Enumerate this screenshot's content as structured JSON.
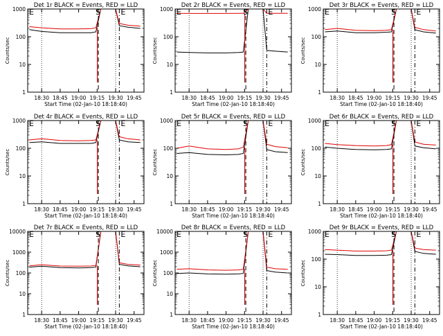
{
  "figure": {
    "start_time_label": "Start Time (02-Jan-10 18:18:40)",
    "ylabel": "Counts/sec",
    "marker_labels": {
      "start": "S",
      "end": "E"
    },
    "colors": {
      "events": "#000000",
      "lld": "#e00000",
      "axis": "#000000"
    },
    "x_ticks": [
      "18:30",
      "18:45",
      "19:00",
      "19:15",
      "19:30",
      "19:45"
    ],
    "legend_text": "BLACK = Events, RED = LLD"
  },
  "chart_data": [
    {
      "type": "line",
      "title": "Det 1r BLACK = Events, RED = LLD",
      "xlabel": "Start Time (02-Jan-10 18:18:40)",
      "ylabel": "Counts/sec",
      "yscale": "log",
      "ylim": [
        1,
        1000
      ],
      "y_ticks": [
        "1",
        "10",
        "100",
        "1000"
      ],
      "x_ticks": [
        "18:30",
        "18:45",
        "19:00",
        "19:15",
        "19:30",
        "19:45"
      ],
      "markers": {
        "E_left_at": "18:18",
        "S_at": "19:16",
        "E_right_at": "19:33"
      },
      "series": [
        {
          "name": "Events",
          "color": "#000000",
          "x": [
            "18:20",
            "18:30",
            "18:45",
            "19:00",
            "19:10",
            "19:14",
            "19:18",
            "19:30",
            "19:33",
            "19:40",
            "19:50"
          ],
          "y": [
            180,
            155,
            140,
            140,
            140,
            150,
            1000,
            1000,
            250,
            220,
            200
          ]
        },
        {
          "name": "LLD",
          "color": "#e00000",
          "x": [
            "18:20",
            "18:30",
            "18:45",
            "19:00",
            "19:10",
            "19:14",
            "19:18",
            "19:30",
            "19:33",
            "19:40",
            "19:50"
          ],
          "y": [
            230,
            210,
            190,
            190,
            195,
            210,
            1000,
            1000,
            300,
            260,
            240
          ]
        }
      ]
    },
    {
      "type": "line",
      "title": "Det 2r BLACK = Events, RED = LLD",
      "xlabel": "Start Time (02-Jan-10 18:18:40)",
      "ylabel": "Counts/sec",
      "yscale": "log",
      "ylim": [
        1,
        1000
      ],
      "y_ticks": [
        "1",
        "10",
        "100",
        "1000"
      ],
      "x_ticks": [
        "18:30",
        "18:45",
        "19:00",
        "19:15",
        "19:30",
        "19:45"
      ],
      "markers": {
        "E_left_at": "18:18",
        "S_at": "19:16",
        "E_right_at": "19:33"
      },
      "series": [
        {
          "name": "Events",
          "color": "#000000",
          "x": [
            "18:20",
            "18:30",
            "18:45",
            "19:00",
            "19:10",
            "19:14",
            "19:18",
            "19:30",
            "19:33",
            "19:40",
            "19:50"
          ],
          "y": [
            28,
            27,
            26,
            26,
            27,
            28,
            1000,
            1000,
            32,
            30,
            28
          ]
        },
        {
          "name": "LLD",
          "color": "#e00000",
          "x": [
            "18:20",
            "18:30",
            "18:45",
            "19:00",
            "19:10",
            "19:14",
            "19:18",
            "19:30",
            "19:33",
            "19:40",
            "19:50"
          ],
          "y": [
            700,
            690,
            690,
            690,
            695,
            700,
            1000,
            1000,
            700,
            700,
            700
          ]
        }
      ]
    },
    {
      "type": "line",
      "title": "Det 3r BLACK = Events, RED = LLD",
      "xlabel": "Start Time (02-Jan-10 18:18:40)",
      "ylabel": "Counts/sec",
      "yscale": "log",
      "ylim": [
        1,
        1000
      ],
      "y_ticks": [
        "1",
        "10",
        "100",
        "1000"
      ],
      "x_ticks": [
        "18:30",
        "18:45",
        "19:00",
        "19:15",
        "19:30",
        "19:45"
      ],
      "markers": {
        "E_left_at": "18:18",
        "S_at": "19:16",
        "E_right_at": "19:33"
      },
      "series": [
        {
          "name": "Events",
          "color": "#000000",
          "x": [
            "18:20",
            "18:30",
            "18:45",
            "19:00",
            "19:10",
            "19:14",
            "19:18",
            "19:30",
            "19:33",
            "19:40",
            "19:50"
          ],
          "y": [
            150,
            160,
            140,
            140,
            145,
            150,
            1000,
            1000,
            180,
            150,
            135
          ]
        },
        {
          "name": "LLD",
          "color": "#e00000",
          "x": [
            "18:20",
            "18:30",
            "18:45",
            "19:00",
            "19:10",
            "19:14",
            "19:18",
            "19:30",
            "19:33",
            "19:40",
            "19:50"
          ],
          "y": [
            180,
            200,
            170,
            165,
            170,
            180,
            1000,
            1000,
            220,
            180,
            160
          ]
        }
      ]
    },
    {
      "type": "line",
      "title": "Det 4r BLACK = Events, RED = LLD",
      "xlabel": "Start Time (02-Jan-10 18:18:40)",
      "ylabel": "Counts/sec",
      "yscale": "log",
      "ylim": [
        1,
        1000
      ],
      "y_ticks": [
        "1",
        "10",
        "100",
        "1000"
      ],
      "x_ticks": [
        "18:30",
        "18:45",
        "19:00",
        "19:15",
        "19:30",
        "19:45"
      ],
      "markers": {
        "E_left_at": "18:18",
        "S_at": "19:16",
        "E_right_at": "19:33"
      },
      "series": [
        {
          "name": "Events",
          "color": "#000000",
          "x": [
            "18:20",
            "18:30",
            "18:45",
            "19:00",
            "19:10",
            "19:14",
            "19:18",
            "19:30",
            "19:33",
            "19:40",
            "19:50"
          ],
          "y": [
            160,
            170,
            150,
            150,
            150,
            160,
            1000,
            1000,
            200,
            170,
            160
          ]
        },
        {
          "name": "LLD",
          "color": "#e00000",
          "x": [
            "18:20",
            "18:30",
            "18:45",
            "19:00",
            "19:10",
            "19:14",
            "19:18",
            "19:30",
            "19:33",
            "19:40",
            "19:50"
          ],
          "y": [
            200,
            220,
            190,
            185,
            190,
            200,
            1000,
            1000,
            260,
            220,
            200
          ]
        }
      ]
    },
    {
      "type": "line",
      "title": "Det 5r BLACK = Events, RED = LLD",
      "xlabel": "Start Time (02-Jan-10 18:18:40)",
      "ylabel": "Counts/sec",
      "yscale": "log",
      "ylim": [
        1,
        1000
      ],
      "y_ticks": [
        "1",
        "10",
        "100",
        "1000"
      ],
      "x_ticks": [
        "18:30",
        "18:45",
        "19:00",
        "19:15",
        "19:30",
        "19:45"
      ],
      "markers": {
        "E_left_at": "18:18",
        "S_at": "19:16",
        "E_right_at": "19:33"
      },
      "series": [
        {
          "name": "Events",
          "color": "#000000",
          "x": [
            "18:20",
            "18:30",
            "18:45",
            "19:00",
            "19:10",
            "19:14",
            "19:18",
            "19:30",
            "19:33",
            "19:40",
            "19:50"
          ],
          "y": [
            65,
            70,
            60,
            58,
            60,
            65,
            1000,
            1000,
            90,
            75,
            70
          ]
        },
        {
          "name": "LLD",
          "color": "#e00000",
          "x": [
            "18:20",
            "18:30",
            "18:45",
            "19:00",
            "19:10",
            "19:14",
            "19:18",
            "19:30",
            "19:33",
            "19:40",
            "19:50"
          ],
          "y": [
            100,
            120,
            95,
            90,
            95,
            110,
            1000,
            1000,
            140,
            115,
            105
          ]
        }
      ]
    },
    {
      "type": "line",
      "title": "Det 6r BLACK = Events, RED = LLD",
      "xlabel": "Start Time (02-Jan-10 18:18:40)",
      "ylabel": "Counts/sec",
      "yscale": "log",
      "ylim": [
        1,
        1000
      ],
      "y_ticks": [
        "1",
        "10",
        "100",
        "1000"
      ],
      "x_ticks": [
        "18:30",
        "18:45",
        "19:00",
        "19:15",
        "19:30",
        "19:45"
      ],
      "markers": {
        "E_left_at": "18:18",
        "S_at": "19:16",
        "E_right_at": "19:33"
      },
      "series": [
        {
          "name": "Events",
          "color": "#000000",
          "x": [
            "18:20",
            "18:30",
            "18:45",
            "19:00",
            "19:10",
            "19:14",
            "19:18",
            "19:30",
            "19:33",
            "19:40",
            "19:50"
          ],
          "y": [
            110,
            100,
            90,
            88,
            90,
            95,
            1000,
            1000,
            120,
            105,
            95
          ]
        },
        {
          "name": "LLD",
          "color": "#e00000",
          "x": [
            "18:20",
            "18:30",
            "18:45",
            "19:00",
            "19:10",
            "19:14",
            "19:18",
            "19:30",
            "19:33",
            "19:40",
            "19:50"
          ],
          "y": [
            150,
            135,
            125,
            120,
            125,
            135,
            1000,
            1000,
            170,
            140,
            130
          ]
        }
      ]
    },
    {
      "type": "line",
      "title": "Det 7r BLACK = Events, RED = LLD",
      "xlabel": "Start Time (02-Jan-10 18:18:40)",
      "ylabel": "Counts/sec",
      "yscale": "log",
      "ylim": [
        1,
        10000
      ],
      "y_ticks": [
        "1",
        "10",
        "100",
        "1000",
        "10000"
      ],
      "x_ticks": [
        "18:30",
        "18:45",
        "19:00",
        "19:15",
        "19:30",
        "19:45"
      ],
      "markers": {
        "E_left_at": "18:18",
        "S_at": "19:16",
        "E_right_at": "19:33"
      },
      "series": [
        {
          "name": "Events",
          "color": "#000000",
          "x": [
            "18:20",
            "18:30",
            "18:45",
            "19:00",
            "19:10",
            "19:14",
            "19:18",
            "19:30",
            "19:33",
            "19:40",
            "19:50"
          ],
          "y": [
            190,
            210,
            180,
            175,
            180,
            190,
            10000,
            10000,
            260,
            220,
            200
          ]
        },
        {
          "name": "LLD",
          "color": "#e00000",
          "x": [
            "18:20",
            "18:30",
            "18:45",
            "19:00",
            "19:10",
            "19:14",
            "19:18",
            "19:30",
            "19:33",
            "19:40",
            "19:50"
          ],
          "y": [
            220,
            250,
            215,
            210,
            215,
            230,
            10000,
            10000,
            310,
            260,
            240
          ]
        }
      ]
    },
    {
      "type": "line",
      "title": "Det 8r BLACK = Events, RED = LLD",
      "xlabel": "Start Time (02-Jan-10 18:18:40)",
      "ylabel": "Counts/sec",
      "yscale": "log",
      "ylim": [
        1,
        10000
      ],
      "y_ticks": [
        "1",
        "10",
        "100",
        "1000",
        "10000"
      ],
      "x_ticks": [
        "18:30",
        "18:45",
        "19:00",
        "19:15",
        "19:30",
        "19:45"
      ],
      "markers": {
        "E_left_at": "18:18",
        "S_at": "19:16",
        "E_right_at": "19:33"
      },
      "series": [
        {
          "name": "Events",
          "color": "#000000",
          "x": [
            "18:20",
            "18:30",
            "18:45",
            "19:00",
            "19:10",
            "19:14",
            "19:18",
            "19:30",
            "19:33",
            "19:40",
            "19:50"
          ],
          "y": [
            95,
            100,
            90,
            88,
            90,
            95,
            10000,
            10000,
            130,
            110,
            100
          ]
        },
        {
          "name": "LLD",
          "color": "#e00000",
          "x": [
            "18:20",
            "18:30",
            "18:45",
            "19:00",
            "19:10",
            "19:14",
            "19:18",
            "19:30",
            "19:33",
            "19:40",
            "19:50"
          ],
          "y": [
            150,
            160,
            140,
            135,
            140,
            150,
            10000,
            10000,
            190,
            160,
            150
          ]
        }
      ]
    },
    {
      "type": "line",
      "title": "Det 9r BLACK = Events, RED = LLD",
      "xlabel": "Start Time (02-Jan-10 18:18:40)",
      "ylabel": "Counts/sec",
      "yscale": "log",
      "ylim": [
        1,
        1000
      ],
      "y_ticks": [
        "1",
        "10",
        "100",
        "1000"
      ],
      "x_ticks": [
        "18:30",
        "18:45",
        "19:00",
        "19:15",
        "19:30",
        "19:45"
      ],
      "markers": {
        "E_left_at": "18:18",
        "S_at": "19:16",
        "E_right_at": "19:33"
      },
      "series": [
        {
          "name": "Events",
          "color": "#000000",
          "x": [
            "18:20",
            "18:30",
            "18:45",
            "19:00",
            "19:10",
            "19:14",
            "19:18",
            "19:30",
            "19:33",
            "19:40",
            "19:50"
          ],
          "y": [
            150,
            145,
            135,
            135,
            138,
            145,
            1000,
            1000,
            190,
            160,
            150
          ]
        },
        {
          "name": "LLD",
          "color": "#e00000",
          "x": [
            "18:20",
            "18:30",
            "18:45",
            "19:00",
            "19:10",
            "19:14",
            "19:18",
            "19:30",
            "19:33",
            "19:40",
            "19:50"
          ],
          "y": [
            220,
            210,
            195,
            195,
            200,
            210,
            1000,
            1000,
            250,
            220,
            210
          ]
        }
      ]
    }
  ]
}
